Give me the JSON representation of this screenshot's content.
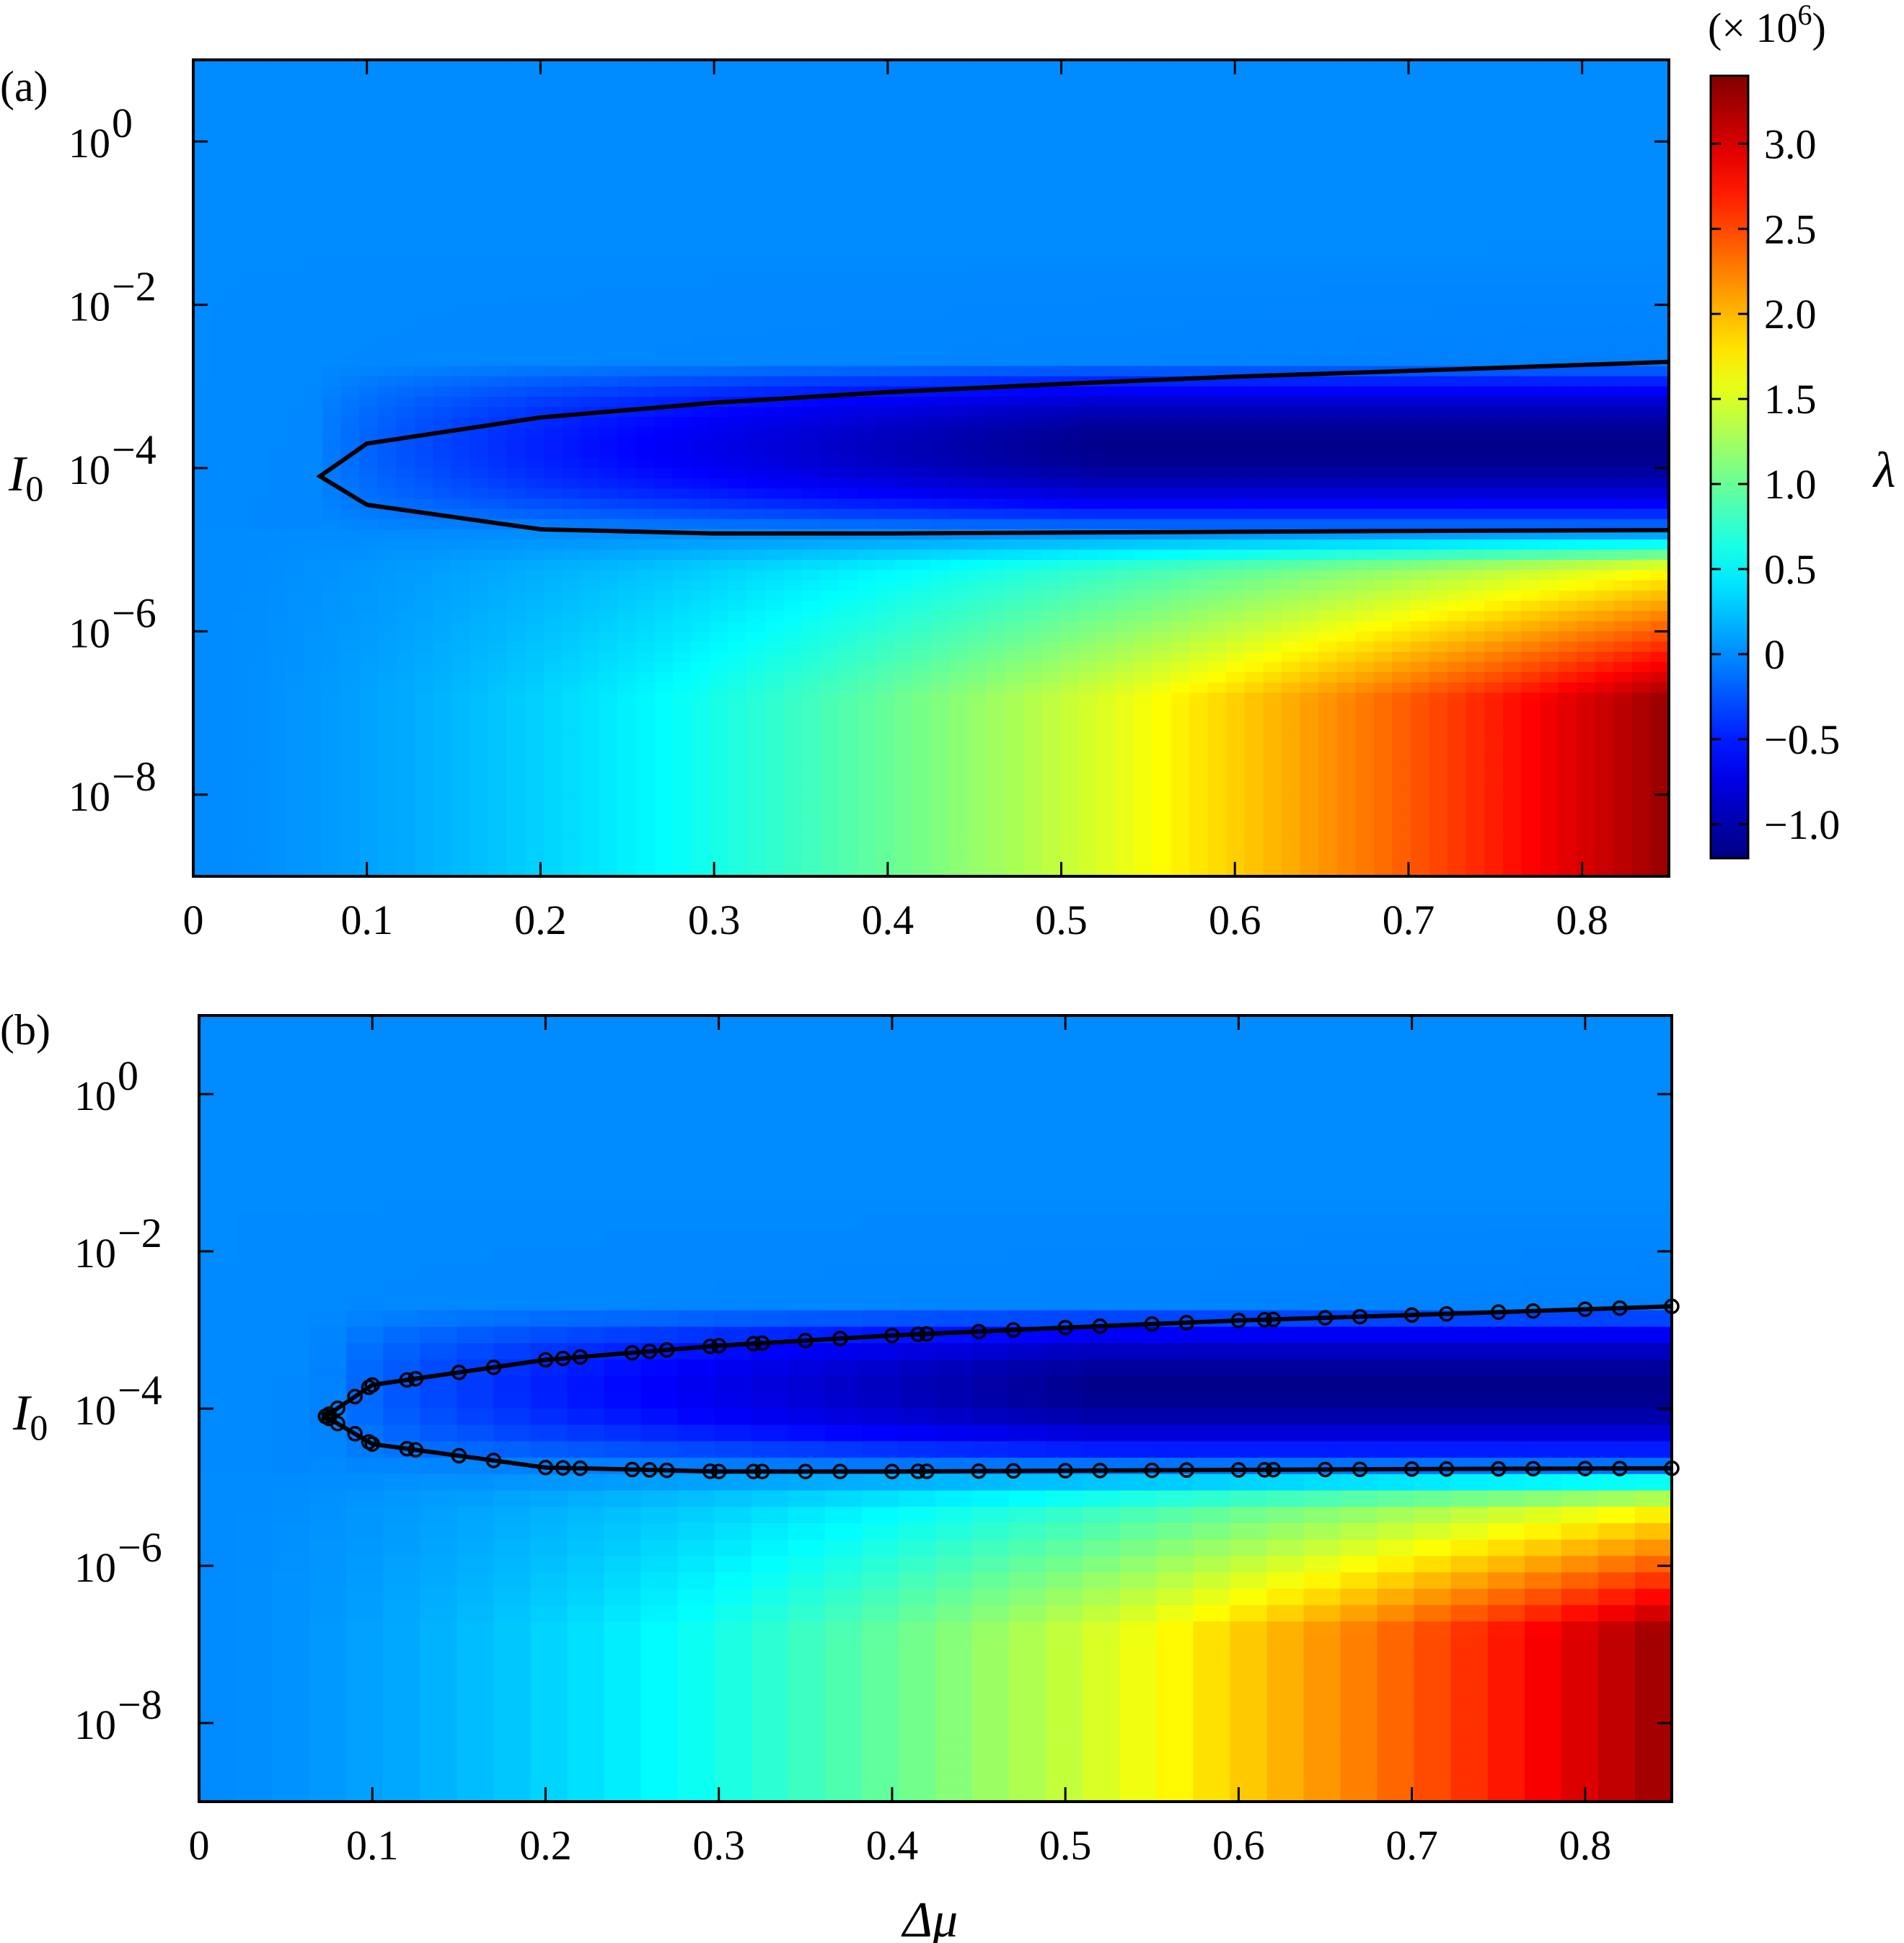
{
  "chart_data": [
    {
      "panel_label": "(a)",
      "type": "heatmap",
      "style": "smooth",
      "ylabel": "I",
      "ylabel_sub": "0",
      "xlabel": "",
      "xlim": [
        0,
        0.85
      ],
      "ylim_log10": [
        -9,
        1
      ],
      "y_scale": "log",
      "xticks": [
        {
          "v": 0,
          "label": "0"
        },
        {
          "v": 0.1,
          "label": "0.1"
        },
        {
          "v": 0.2,
          "label": "0.2"
        },
        {
          "v": 0.3,
          "label": "0.3"
        },
        {
          "v": 0.4,
          "label": "0.4"
        },
        {
          "v": 0.5,
          "label": "0.5"
        },
        {
          "v": 0.6,
          "label": "0.6"
        },
        {
          "v": 0.7,
          "label": "0.7"
        },
        {
          "v": 0.8,
          "label": "0.8"
        }
      ],
      "yticks": [
        {
          "e": 0,
          "base": "10",
          "exp": "0"
        },
        {
          "e": -2,
          "base": "10",
          "exp": "−2"
        },
        {
          "e": -4,
          "base": "10",
          "exp": "−4"
        },
        {
          "e": -6,
          "base": "10",
          "exp": "−6"
        },
        {
          "e": -8,
          "base": "10",
          "exp": "−8"
        }
      ],
      "contour_line": {
        "tip": [
          0.073,
          -4.1
        ],
        "upper": [
          [
            0.073,
            -4.1
          ],
          [
            0.1,
            -3.7
          ],
          [
            0.2,
            -3.38
          ],
          [
            0.3,
            -3.2
          ],
          [
            0.4,
            -3.07
          ],
          [
            0.5,
            -2.97
          ],
          [
            0.6,
            -2.88
          ],
          [
            0.7,
            -2.81
          ],
          [
            0.85,
            -2.7
          ]
        ],
        "lower": [
          [
            0.073,
            -4.1
          ],
          [
            0.1,
            -4.45
          ],
          [
            0.2,
            -4.75
          ],
          [
            0.3,
            -4.8
          ],
          [
            0.4,
            -4.8
          ],
          [
            0.5,
            -4.79
          ],
          [
            0.6,
            -4.78
          ],
          [
            0.7,
            -4.77
          ],
          [
            0.85,
            -4.76
          ]
        ]
      }
    },
    {
      "panel_label": "(b)",
      "type": "heatmap",
      "style": "blocky",
      "ylabel": "I",
      "ylabel_sub": "0",
      "xlabel": "Δμ",
      "xlim": [
        0,
        0.85
      ],
      "ylim_log10": [
        -9,
        1
      ],
      "y_scale": "log",
      "xticks": [
        {
          "v": 0,
          "label": "0"
        },
        {
          "v": 0.1,
          "label": "0.1"
        },
        {
          "v": 0.2,
          "label": "0.2"
        },
        {
          "v": 0.3,
          "label": "0.3"
        },
        {
          "v": 0.4,
          "label": "0.4"
        },
        {
          "v": 0.5,
          "label": "0.5"
        },
        {
          "v": 0.6,
          "label": "0.6"
        },
        {
          "v": 0.7,
          "label": "0.7"
        },
        {
          "v": 0.8,
          "label": "0.8"
        }
      ],
      "yticks": [
        {
          "e": 0,
          "base": "10",
          "exp": "0"
        },
        {
          "e": -2,
          "base": "10",
          "exp": "−2"
        },
        {
          "e": -4,
          "base": "10",
          "exp": "−4"
        },
        {
          "e": -6,
          "base": "10",
          "exp": "−6"
        },
        {
          "e": -8,
          "base": "10",
          "exp": "−8"
        }
      ],
      "contour_line": {
        "tip": [
          0.073,
          -4.1
        ],
        "upper": [
          [
            0.073,
            -4.1
          ],
          [
            0.1,
            -3.7
          ],
          [
            0.2,
            -3.38
          ],
          [
            0.3,
            -3.2
          ],
          [
            0.4,
            -3.07
          ],
          [
            0.5,
            -2.97
          ],
          [
            0.6,
            -2.88
          ],
          [
            0.7,
            -2.81
          ],
          [
            0.85,
            -2.7
          ]
        ],
        "lower": [
          [
            0.073,
            -4.1
          ],
          [
            0.1,
            -4.45
          ],
          [
            0.2,
            -4.75
          ],
          [
            0.3,
            -4.8
          ],
          [
            0.4,
            -4.8
          ],
          [
            0.5,
            -4.79
          ],
          [
            0.6,
            -4.78
          ],
          [
            0.7,
            -4.77
          ],
          [
            0.85,
            -4.76
          ]
        ]
      },
      "markers_x": [
        0.07,
        0.072,
        0.075,
        0.08,
        0.09,
        0.098,
        0.1,
        0.12,
        0.125,
        0.15,
        0.17,
        0.2,
        0.21,
        0.22,
        0.25,
        0.26,
        0.27,
        0.295,
        0.3,
        0.32,
        0.325,
        0.35,
        0.37,
        0.4,
        0.415,
        0.42,
        0.45,
        0.47,
        0.5,
        0.52,
        0.55,
        0.57,
        0.6,
        0.615,
        0.62,
        0.65,
        0.67,
        0.7,
        0.72,
        0.75,
        0.77,
        0.8,
        0.82,
        0.85
      ],
      "marker": "open-circle"
    }
  ],
  "colorbar": {
    "label": "λ",
    "multiplier_prefix": "(× 10",
    "multiplier_exp": "6",
    "multiplier_suffix": ")",
    "range": [
      -1.2,
      3.4
    ],
    "ticks": [
      {
        "v": 3.0,
        "label": "3.0"
      },
      {
        "v": 2.5,
        "label": "2.5"
      },
      {
        "v": 2.0,
        "label": "2.0"
      },
      {
        "v": 1.5,
        "label": "1.5"
      },
      {
        "v": 1.0,
        "label": "1.0"
      },
      {
        "v": 0.5,
        "label": "0.5"
      },
      {
        "v": 0,
        "label": "0"
      },
      {
        "v": -0.5,
        "label": "−0.5"
      },
      {
        "v": -1.0,
        "label": "−1.0"
      }
    ],
    "colormap": "jet"
  }
}
